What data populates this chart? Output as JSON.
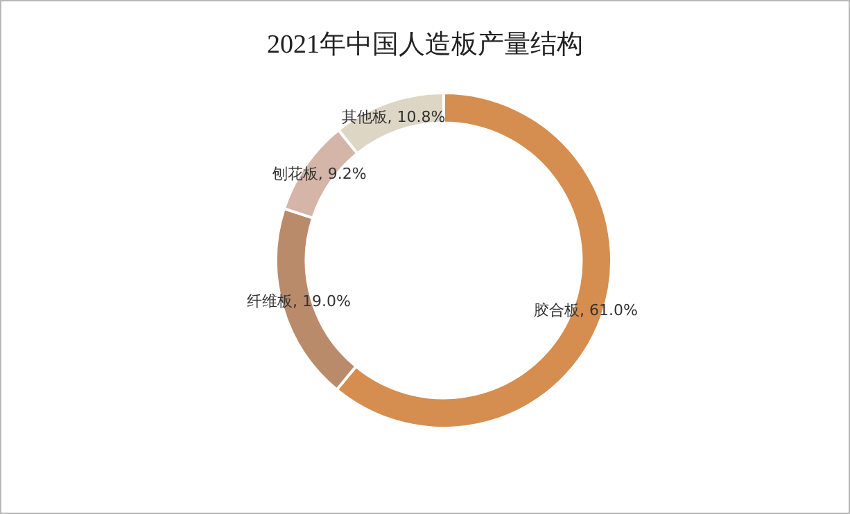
{
  "chart_data": {
    "type": "donut",
    "title": "2021年中国人造板产量结构",
    "categories": [
      "胶合板",
      "纤维板",
      "刨花板",
      "其他板"
    ],
    "values": [
      61.0,
      19.0,
      9.2,
      10.8
    ],
    "value_labels": [
      "61.0%",
      "19.0%",
      "9.2%",
      "10.8%"
    ],
    "colors": [
      "#d58e4f",
      "#ba8b6b",
      "#d5b5a8",
      "#ddd6c5"
    ],
    "legend": false
  }
}
